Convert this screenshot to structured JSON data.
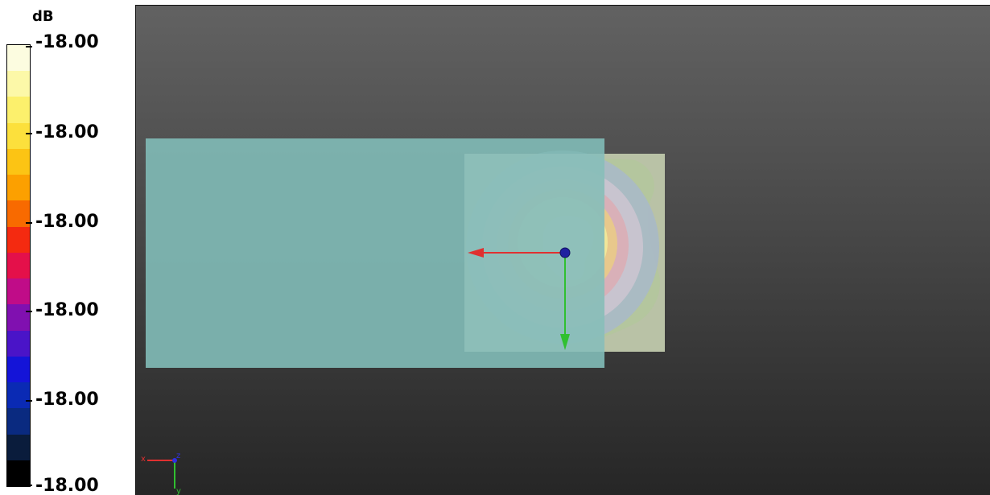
{
  "legend": {
    "unit": "dB",
    "tick_labels": [
      "-18.00",
      "-18.00",
      "-18.00",
      "-18.00",
      "-18.00",
      "-18.00"
    ],
    "colors_bottom_to_top": [
      "#000000",
      "#0a1c3c",
      "#0a2a80",
      "#0a2ab4",
      "#1414d8",
      "#4a14c8",
      "#8010b0",
      "#c00c88",
      "#e4104a",
      "#f42a10",
      "#f86a00",
      "#fca000",
      "#fcc414",
      "#fce03c",
      "#fcf06c",
      "#fcf8a8",
      "#fcfce0"
    ]
  },
  "viewport": {
    "background_top": "#626262",
    "background_bottom": "#262626",
    "axes_gizmo": {
      "x_label": "x",
      "z_label": "z",
      "y_label": "y",
      "x_color": "#e03030",
      "y_color": "#30c030",
      "z_color": "#3030e0"
    },
    "planes": {
      "teal_plane_color": "#7fb8b4",
      "pink_plane_color": "#d99a9c",
      "field_plane_color": "#b8c4a8"
    },
    "source_marker_color": "#2020a0"
  }
}
